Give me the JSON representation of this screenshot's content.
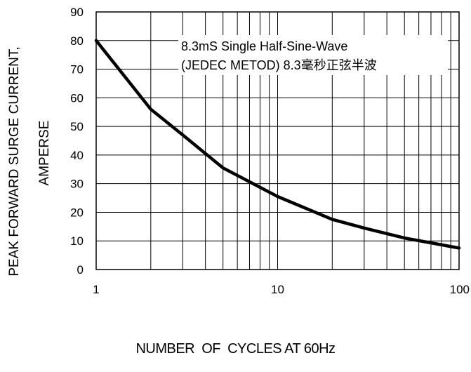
{
  "chart_data": {
    "type": "line",
    "xlabel": "NUMBER  OF  CYCLES AT 60Hz",
    "ylabel_line1": "PEAK FORWARD SURGE CURRENT,",
    "ylabel_line2": "AMPERSE",
    "x_scale": "log",
    "xlim": [
      1,
      100
    ],
    "ylim": [
      0,
      90
    ],
    "x_ticks": [
      1,
      10,
      100
    ],
    "x_tick_labels": [
      "1",
      "10",
      "100"
    ],
    "y_ticks": [
      0,
      10,
      20,
      30,
      40,
      50,
      60,
      70,
      80,
      90
    ],
    "y_tick_labels": [
      "0",
      "10",
      "20",
      "30",
      "40",
      "50",
      "60",
      "70",
      "80",
      "90"
    ],
    "grid": true,
    "annotation": {
      "line1": "8.3mS Single Half-Sine-Wave",
      "line2": "(JEDEC METOD)  8.3毫秒正弦半波"
    },
    "series": [
      {
        "x": [
          1,
          2,
          3,
          5,
          10,
          20,
          30,
          50,
          100
        ],
        "y": [
          80,
          56,
          47,
          35.5,
          25.5,
          17.5,
          14.5,
          11,
          7.5
        ]
      }
    ],
    "line_color": "#000000"
  }
}
